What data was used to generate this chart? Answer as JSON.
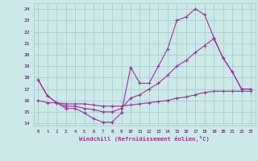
{
  "xlabel": "Windchill (Refroidissement éolien,°C)",
  "bg_color": "#cce8e8",
  "grid_color": "#aacccc",
  "line_color": "#993399",
  "xlim": [
    -0.5,
    23.5
  ],
  "ylim": [
    13.8,
    24.5
  ],
  "yticks": [
    14,
    15,
    16,
    17,
    18,
    19,
    20,
    21,
    22,
    23,
    24
  ],
  "xticks": [
    0,
    1,
    2,
    3,
    4,
    5,
    6,
    7,
    8,
    9,
    10,
    11,
    12,
    13,
    14,
    15,
    16,
    17,
    18,
    19,
    20,
    21,
    22,
    23
  ],
  "line1_x": [
    0,
    1,
    2,
    3,
    4,
    5,
    6,
    7,
    8,
    9,
    10,
    11,
    12,
    13,
    14,
    15,
    16,
    17,
    18,
    19,
    20,
    21,
    22,
    23
  ],
  "line1_y": [
    17.8,
    16.4,
    15.8,
    15.3,
    15.3,
    14.9,
    14.4,
    14.1,
    14.1,
    14.9,
    18.9,
    17.5,
    17.5,
    19.0,
    20.5,
    23.0,
    23.3,
    24.0,
    23.5,
    21.5,
    19.7,
    18.5,
    17.0,
    17.0
  ],
  "line2_x": [
    0,
    1,
    2,
    3,
    4,
    5,
    6,
    7,
    8,
    9,
    10,
    11,
    12,
    13,
    14,
    15,
    16,
    17,
    18,
    19,
    20,
    21,
    22,
    23
  ],
  "line2_y": [
    17.8,
    16.4,
    15.8,
    15.5,
    15.5,
    15.3,
    15.2,
    15.0,
    15.0,
    15.3,
    16.2,
    16.5,
    17.0,
    17.5,
    18.2,
    19.0,
    19.5,
    20.2,
    20.8,
    21.4,
    19.7,
    18.5,
    17.0,
    17.0
  ],
  "line3_x": [
    0,
    1,
    2,
    3,
    4,
    5,
    6,
    7,
    8,
    9,
    10,
    11,
    12,
    13,
    14,
    15,
    16,
    17,
    18,
    19,
    20,
    21,
    22,
    23
  ],
  "line3_y": [
    16.0,
    15.8,
    15.8,
    15.7,
    15.7,
    15.7,
    15.6,
    15.5,
    15.5,
    15.5,
    15.6,
    15.7,
    15.8,
    15.9,
    16.0,
    16.2,
    16.3,
    16.5,
    16.7,
    16.8,
    16.8,
    16.8,
    16.8,
    16.8
  ]
}
